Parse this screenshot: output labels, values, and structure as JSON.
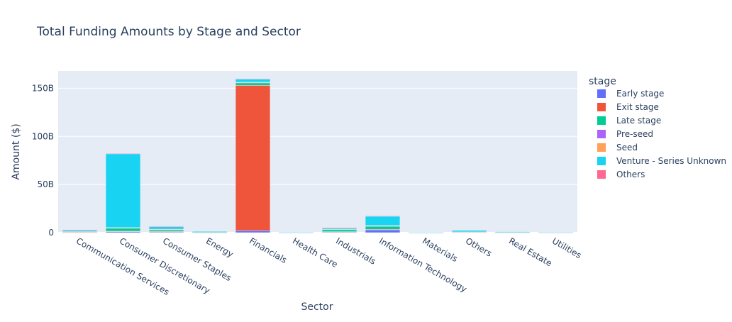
{
  "chart_data": {
    "type": "bar",
    "barmode": "stack",
    "title": "Total Funding Amounts by Stage and Sector",
    "xlabel": "Sector",
    "ylabel": "Amount ($)",
    "ylim": [
      0,
      168
    ],
    "yticks": [
      {
        "value": 0,
        "label": "0"
      },
      {
        "value": 50,
        "label": "50B"
      },
      {
        "value": 100,
        "label": "100B"
      },
      {
        "value": 150,
        "label": "150B"
      }
    ],
    "grid": true,
    "legend_title": "stage",
    "legend_position": "right",
    "categories": [
      "Communication Services",
      "Consumer Discretionary",
      "Consumer Staples",
      "Energy",
      "Financials",
      "Health Care",
      "Industrials",
      "Information Technology",
      "Materials",
      "Others",
      "Real Estate",
      "Utilities"
    ],
    "series": [
      {
        "name": "Early stage",
        "color": "#636efa",
        "values": [
          0.3,
          1.0,
          0.8,
          0.1,
          2.0,
          0.1,
          0.6,
          3.0,
          0.0,
          0.3,
          0.1,
          0.0
        ]
      },
      {
        "name": "Exit stage",
        "color": "#EF553B",
        "values": [
          0.2,
          0.5,
          0.5,
          0.1,
          151.0,
          0.0,
          0.4,
          0.5,
          0.0,
          0.1,
          0.1,
          0.0
        ]
      },
      {
        "name": "Late stage",
        "color": "#00cc96",
        "values": [
          0.5,
          3.5,
          2.0,
          0.3,
          3.0,
          0.1,
          2.5,
          3.5,
          0.1,
          0.3,
          0.2,
          0.1
        ]
      },
      {
        "name": "Pre-seed",
        "color": "#ab63fa",
        "values": [
          0.0,
          0.1,
          0.1,
          0.0,
          0.1,
          0.0,
          0.0,
          0.1,
          0.0,
          0.0,
          0.0,
          0.0
        ]
      },
      {
        "name": "Seed",
        "color": "#FFA15A",
        "values": [
          0.1,
          0.2,
          0.2,
          0.0,
          0.2,
          0.0,
          0.1,
          0.3,
          0.0,
          0.1,
          0.0,
          0.0
        ]
      },
      {
        "name": "Venture - Series Unknown",
        "color": "#19d3f3",
        "values": [
          1.8,
          77.0,
          3.0,
          0.7,
          3.5,
          0.1,
          1.5,
          10.0,
          0.1,
          1.5,
          0.6,
          0.2
        ]
      },
      {
        "name": "Others",
        "color": "#FF6692",
        "values": [
          0.1,
          0.1,
          0.1,
          0.0,
          0.1,
          0.0,
          0.1,
          0.1,
          0.0,
          0.0,
          0.0,
          0.0
        ]
      }
    ]
  }
}
